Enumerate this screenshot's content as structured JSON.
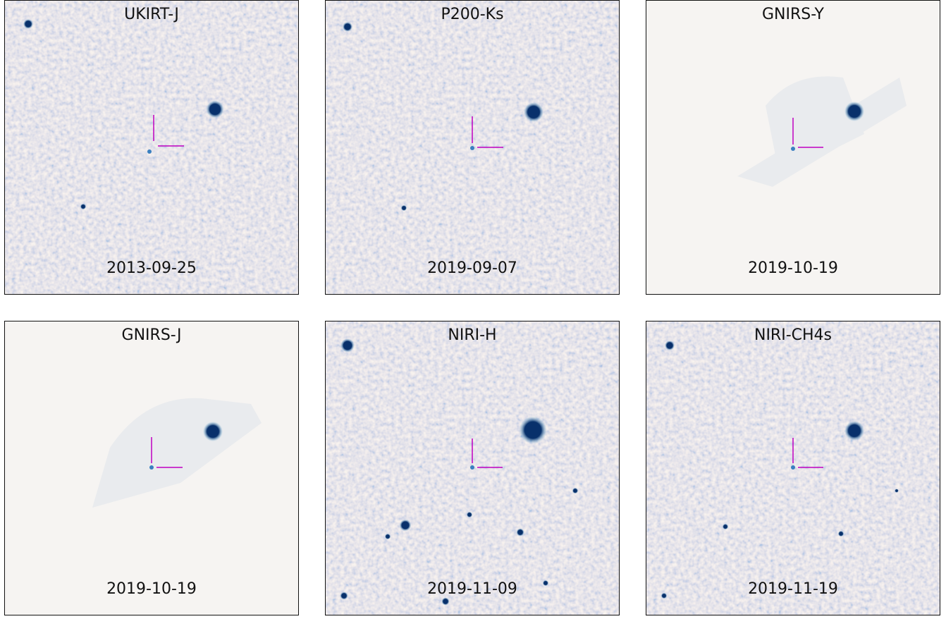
{
  "panels": [
    {
      "title": "UKIRT-J",
      "date": "2013-09-25"
    },
    {
      "title": "P200-Ks",
      "date": "2019-09-07"
    },
    {
      "title": "GNIRS-Y",
      "date": "2019-10-19"
    },
    {
      "title": "GNIRS-J",
      "date": "2019-10-19"
    },
    {
      "title": "NIRI-H",
      "date": "2019-11-09"
    },
    {
      "title": "NIRI-CH4s",
      "date": "2019-11-19"
    }
  ]
}
